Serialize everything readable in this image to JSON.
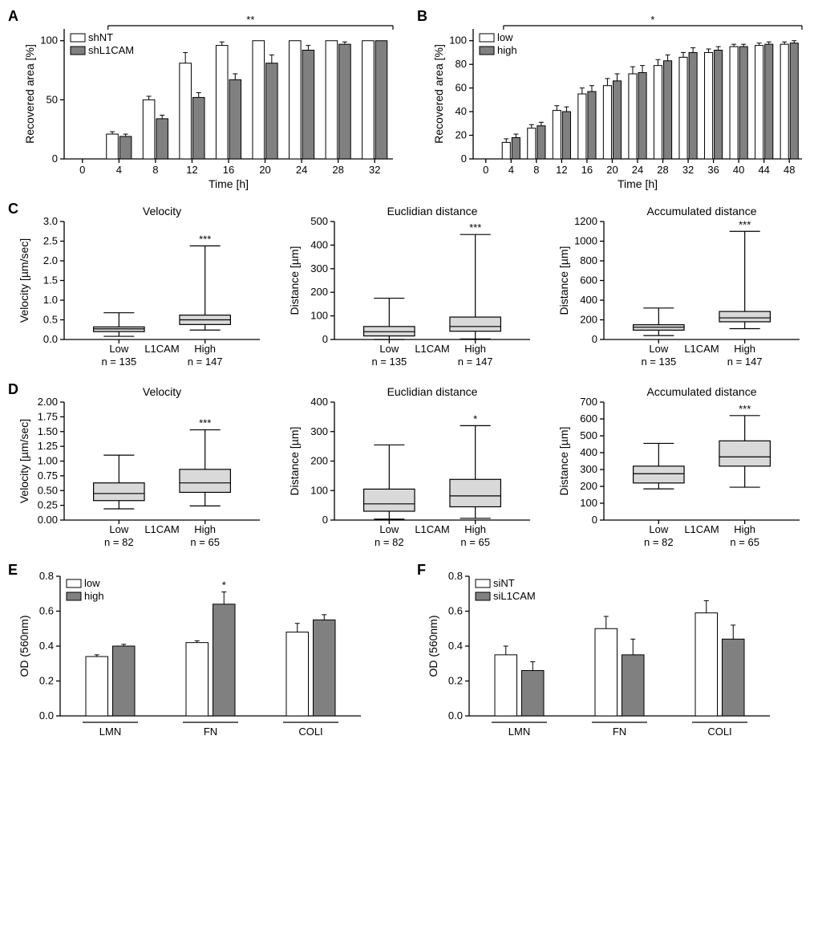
{
  "colors": {
    "bg": "#ffffff",
    "axis": "#000000",
    "bar_white": "#ffffff",
    "bar_gray": "#808080",
    "box_fill": "#d9d9d9"
  },
  "panelA": {
    "label": "A",
    "type": "bar",
    "xlabel": "Time [h]",
    "ylabel": "Recovered area [%]",
    "ylim": [
      0,
      110
    ],
    "ytick_step": 50,
    "yticks": [
      0,
      50,
      100
    ],
    "xticks": [
      0,
      4,
      8,
      12,
      16,
      20,
      24,
      28,
      32
    ],
    "legend": [
      {
        "label": "shNT",
        "fill": "#ffffff"
      },
      {
        "label": "shL1CAM",
        "fill": "#808080"
      }
    ],
    "sig": "**",
    "series_white": [
      0,
      21,
      50,
      81,
      96,
      100,
      100,
      100,
      100
    ],
    "series_white_err": [
      0,
      2,
      3,
      9,
      3,
      0,
      0,
      0,
      0
    ],
    "series_gray": [
      0,
      19,
      34,
      52,
      67,
      81,
      92,
      97,
      100
    ],
    "series_gray_err": [
      0,
      2,
      3,
      4,
      5,
      7,
      4,
      2,
      0
    ]
  },
  "panelB": {
    "label": "B",
    "type": "bar",
    "xlabel": "Time [h]",
    "ylabel": "Recovered area [%]",
    "ylim": [
      0,
      110
    ],
    "yticks": [
      0,
      20,
      40,
      60,
      80,
      100
    ],
    "xticks": [
      0,
      4,
      8,
      12,
      16,
      20,
      24,
      28,
      32,
      36,
      40,
      44,
      48
    ],
    "legend": [
      {
        "label": "low",
        "fill": "#ffffff"
      },
      {
        "label": "high",
        "fill": "#808080"
      }
    ],
    "sig": "*",
    "series_white": [
      0,
      14,
      26,
      41,
      55,
      62,
      72,
      79,
      86,
      90,
      95,
      96,
      97
    ],
    "series_white_err": [
      0,
      3,
      3,
      4,
      5,
      6,
      6,
      5,
      4,
      3,
      2,
      2,
      2
    ],
    "series_gray": [
      0,
      18,
      28,
      40,
      57,
      66,
      73,
      83,
      90,
      92,
      95,
      97,
      98
    ],
    "series_gray_err": [
      0,
      3,
      3,
      4,
      5,
      6,
      6,
      5,
      4,
      3,
      2,
      2,
      2
    ]
  },
  "panelC": {
    "label": "C",
    "n_low": "n = 135",
    "n_high": "n = 147",
    "group_label": "L1CAM",
    "x_low": "Low",
    "x_high": "High",
    "charts": [
      {
        "title": "Velocity",
        "ylabel": "Velocity [µm/sec]",
        "ylim": [
          0,
          3.0
        ],
        "yticks": [
          0.0,
          0.5,
          1.0,
          1.5,
          2.0,
          2.5,
          3.0
        ],
        "low": {
          "q1": 0.2,
          "med": 0.27,
          "q3": 0.32,
          "lo": 0.08,
          "hi": 0.68
        },
        "high": {
          "q1": 0.38,
          "med": 0.5,
          "q3": 0.62,
          "lo": 0.24,
          "hi": 2.38
        },
        "sig": "***"
      },
      {
        "title": "Euclidian distance",
        "ylabel": "Distance [µm]",
        "ylim": [
          0,
          500
        ],
        "yticks": [
          0,
          100,
          200,
          300,
          400,
          500
        ],
        "low": {
          "q1": 15,
          "med": 33,
          "q3": 55,
          "lo": 0,
          "hi": 175
        },
        "high": {
          "q1": 35,
          "med": 55,
          "q3": 95,
          "lo": 2,
          "hi": 445
        },
        "sig": "***"
      },
      {
        "title": "Accumulated distance",
        "ylabel": "Distance [µm]",
        "ylim": [
          0,
          1200
        ],
        "yticks": [
          0,
          200,
          400,
          600,
          800,
          1000,
          1200
        ],
        "low": {
          "q1": 95,
          "med": 125,
          "q3": 150,
          "lo": 40,
          "hi": 320
        },
        "high": {
          "q1": 180,
          "med": 220,
          "q3": 285,
          "lo": 110,
          "hi": 1100
        },
        "sig": "***"
      }
    ]
  },
  "panelD": {
    "label": "D",
    "n_low": "n = 82",
    "n_high": "n = 65",
    "group_label": "L1CAM",
    "x_low": "Low",
    "x_high": "High",
    "charts": [
      {
        "title": "Velocity",
        "ylabel": "Velocity [µm/sec]",
        "ylim": [
          0,
          2.0
        ],
        "yticks": [
          0.0,
          0.25,
          0.5,
          0.75,
          1.0,
          1.25,
          1.5,
          1.75,
          2.0
        ],
        "low": {
          "q1": 0.33,
          "med": 0.45,
          "q3": 0.63,
          "lo": 0.19,
          "hi": 1.1
        },
        "high": {
          "q1": 0.47,
          "med": 0.63,
          "q3": 0.86,
          "lo": 0.24,
          "hi": 1.53
        },
        "sig": "***"
      },
      {
        "title": "Euclidian distance",
        "ylabel": "Distance [µm]",
        "ylim": [
          0,
          400
        ],
        "yticks": [
          0,
          100,
          200,
          300,
          400
        ],
        "low": {
          "q1": 30,
          "med": 55,
          "q3": 105,
          "lo": 3,
          "hi": 255
        },
        "high": {
          "q1": 45,
          "med": 82,
          "q3": 138,
          "lo": 6,
          "hi": 320
        },
        "sig": "*"
      },
      {
        "title": "Accumulated distance",
        "ylabel": "Distance [µm]",
        "ylim": [
          0,
          700
        ],
        "yticks": [
          0,
          100,
          200,
          300,
          400,
          500,
          600,
          700
        ],
        "low": {
          "q1": 220,
          "med": 275,
          "q3": 320,
          "lo": 185,
          "hi": 455
        },
        "high": {
          "q1": 320,
          "med": 375,
          "q3": 470,
          "lo": 195,
          "hi": 620
        },
        "sig": "***"
      }
    ]
  },
  "panelE": {
    "label": "E",
    "ylabel": "OD (560nm)",
    "ylim": [
      0,
      0.8
    ],
    "yticks": [
      0.0,
      0.2,
      0.4,
      0.6,
      0.8
    ],
    "groups": [
      "LMN",
      "FN",
      "COLI"
    ],
    "legend": [
      {
        "label": "low",
        "fill": "#ffffff"
      },
      {
        "label": "high",
        "fill": "#808080"
      }
    ],
    "white": [
      0.34,
      0.42,
      0.48
    ],
    "white_err": [
      0.01,
      0.01,
      0.05
    ],
    "gray": [
      0.4,
      0.64,
      0.55
    ],
    "gray_err": [
      0.01,
      0.07,
      0.03
    ],
    "sig": [
      null,
      "*",
      null
    ]
  },
  "panelF": {
    "label": "F",
    "ylabel": "OD (560nm)",
    "ylim": [
      0,
      0.8
    ],
    "yticks": [
      0.0,
      0.2,
      0.4,
      0.6,
      0.8
    ],
    "groups": [
      "LMN",
      "FN",
      "COLI"
    ],
    "legend": [
      {
        "label": "siNT",
        "fill": "#ffffff"
      },
      {
        "label": "siL1CAM",
        "fill": "#808080"
      }
    ],
    "white": [
      0.35,
      0.5,
      0.59
    ],
    "white_err": [
      0.05,
      0.07,
      0.07
    ],
    "gray": [
      0.26,
      0.35,
      0.44
    ],
    "gray_err": [
      0.05,
      0.09,
      0.08
    ],
    "sig": [
      null,
      null,
      null
    ]
  }
}
